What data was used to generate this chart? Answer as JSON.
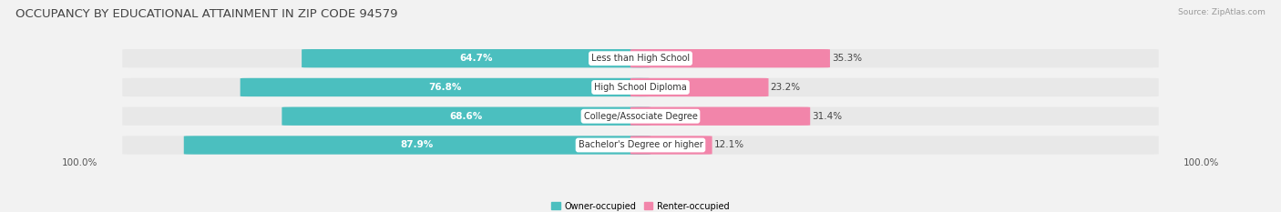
{
  "title": "OCCUPANCY BY EDUCATIONAL ATTAINMENT IN ZIP CODE 94579",
  "source": "Source: ZipAtlas.com",
  "categories": [
    "Less than High School",
    "High School Diploma",
    "College/Associate Degree",
    "Bachelor's Degree or higher"
  ],
  "owner_pct": [
    64.7,
    76.8,
    68.6,
    87.9
  ],
  "renter_pct": [
    35.3,
    23.2,
    31.4,
    12.1
  ],
  "owner_color": "#4BBFBF",
  "renter_color": "#F285AA",
  "row_bg_color": "#E8E8E8",
  "bg_color": "#F2F2F2",
  "axis_label_left": "100.0%",
  "axis_label_right": "100.0%",
  "legend_owner": "Owner-occupied",
  "legend_renter": "Renter-occupied",
  "title_fontsize": 9.5,
  "source_fontsize": 6.5,
  "bar_label_fontsize": 7.5,
  "cat_label_fontsize": 7.0,
  "axis_fontsize": 7.5
}
